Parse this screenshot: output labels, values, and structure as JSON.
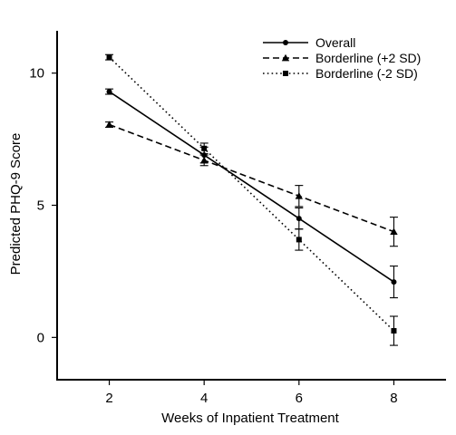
{
  "chart_data": {
    "type": "line",
    "title": "",
    "xlabel": "Weeks of Inpatient Treatment",
    "ylabel": "Predicted PHQ-9 Score",
    "x": [
      2,
      4,
      6,
      8
    ],
    "x_ticks": [
      2,
      4,
      6,
      8
    ],
    "y_ticks": [
      0,
      5,
      10
    ],
    "xlim": [
      0.9,
      9.1
    ],
    "ylim": [
      -1.6,
      11.6
    ],
    "grid": false,
    "legend_position": "top-right",
    "series": [
      {
        "name": "Overall",
        "line_style": "solid",
        "marker": "circle",
        "values": [
          9.3,
          6.9,
          4.5,
          2.1
        ],
        "errors": [
          0.1,
          0.3,
          0.4,
          0.6
        ]
      },
      {
        "name": "Borderline (+2 SD)",
        "line_style": "dashed",
        "marker": "triangle",
        "values": [
          8.05,
          6.7,
          5.35,
          4.0
        ],
        "errors": [
          0.1,
          0.2,
          0.4,
          0.55
        ]
      },
      {
        "name": "Borderline (-2 SD)",
        "line_style": "dotted",
        "marker": "square",
        "values": [
          10.6,
          7.15,
          3.7,
          0.25
        ],
        "errors": [
          0.1,
          0.2,
          0.4,
          0.55
        ]
      }
    ]
  }
}
